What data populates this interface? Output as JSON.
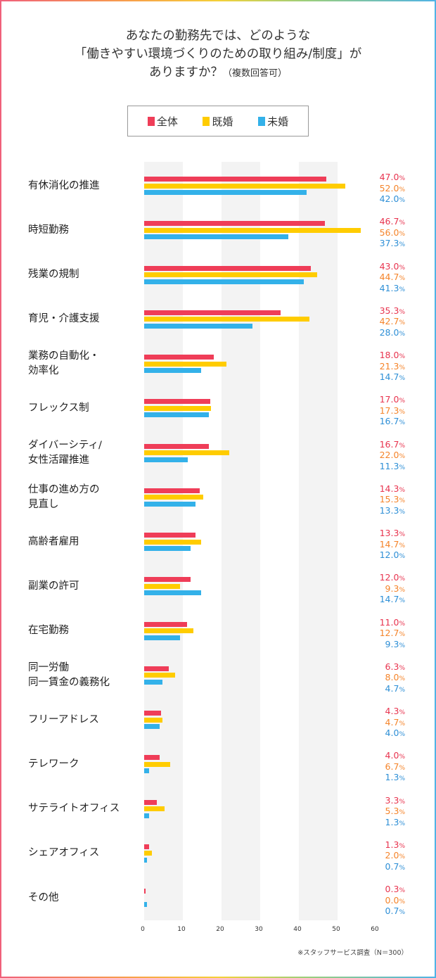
{
  "title": {
    "line1": "あなたの勤務先では、どのような",
    "line2": "「働きやすい環境づくりのための取り組み/制度」が",
    "line3": "ありますか？",
    "note": "（複数回答可）"
  },
  "footnote": "※スタッフサービス調査（N＝300）",
  "chart_data": {
    "type": "bar",
    "orientation": "horizontal",
    "unit": "%",
    "xlim": [
      0,
      60
    ],
    "xticks": [
      "0",
      "10",
      "20",
      "30",
      "40",
      "50",
      "60"
    ],
    "legend_position": "top",
    "categories": [
      "有休消化の推進",
      "時短勤務",
      "残業の規制",
      "育児・介護支援",
      "業務の自動化・\n効率化",
      "フレックス制",
      "ダイバーシティ/\n女性活躍推進",
      "仕事の進め方の\n見直し",
      "高齢者雇用",
      "副業の許可",
      "在宅勤務",
      "同一労働\n同一賃金の義務化",
      "フリーアドレス",
      "テレワーク",
      "サテライトオフィス",
      "シェアオフィス",
      "その他"
    ],
    "series": [
      {
        "name": "全体",
        "color": "#ef3d58",
        "label_color": "#e8344f",
        "values": [
          47.0,
          46.7,
          43.0,
          35.3,
          18.0,
          17.0,
          16.7,
          14.3,
          13.3,
          12.0,
          11.0,
          6.3,
          4.3,
          4.0,
          3.3,
          1.3,
          0.3
        ]
      },
      {
        "name": "既婚",
        "color": "#ffcc00",
        "label_color": "#f5842a",
        "values": [
          52.0,
          56.0,
          44.7,
          42.7,
          21.3,
          17.3,
          22.0,
          15.3,
          14.7,
          9.3,
          12.7,
          8.0,
          4.7,
          6.7,
          5.3,
          2.0,
          0.0
        ]
      },
      {
        "name": "未婚",
        "color": "#33b1e9",
        "label_color": "#2e8fd6",
        "values": [
          42.0,
          37.3,
          41.3,
          28.0,
          14.7,
          16.7,
          11.3,
          13.3,
          12.0,
          14.7,
          9.3,
          4.7,
          4.0,
          1.3,
          1.3,
          0.7,
          0.7
        ]
      }
    ]
  }
}
